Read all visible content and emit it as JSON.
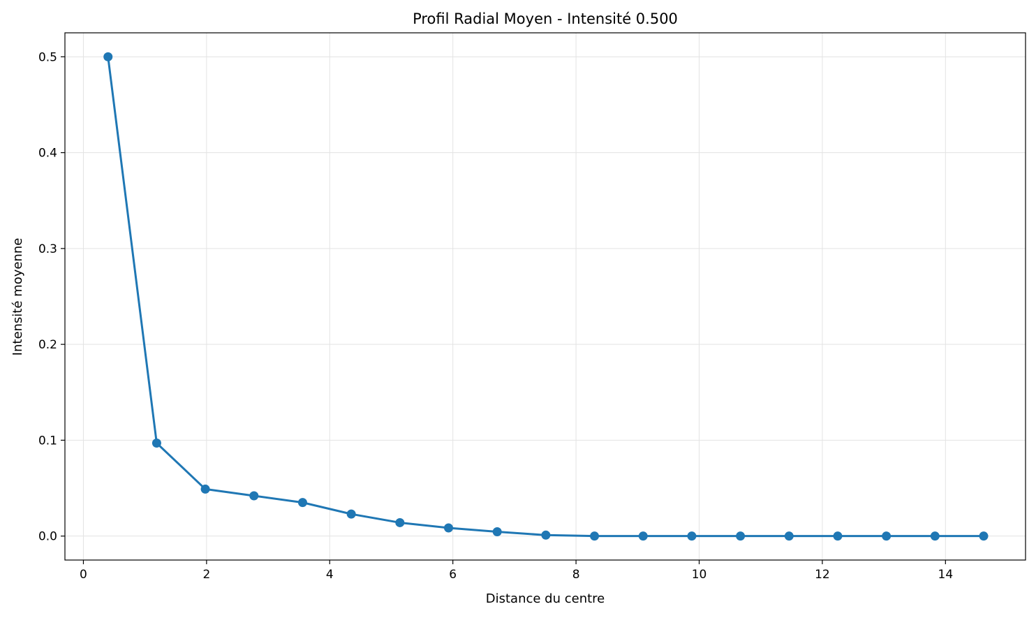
{
  "chart_data": {
    "type": "line",
    "title": "Profil Radial Moyen - Intensité 0.500",
    "xlabel": "Distance du centre",
    "ylabel": "Intensité moyenne",
    "xlim": [
      -0.3,
      15.3
    ],
    "ylim": [
      -0.025,
      0.525
    ],
    "xticks": [
      0,
      2,
      4,
      6,
      8,
      10,
      12,
      14
    ],
    "xtick_labels": [
      "0",
      "2",
      "4",
      "6",
      "8",
      "10",
      "12",
      "14"
    ],
    "yticks": [
      0.0,
      0.1,
      0.2,
      0.3,
      0.4,
      0.5
    ],
    "ytick_labels": [
      "0.0",
      "0.1",
      "0.2",
      "0.3",
      "0.4",
      "0.5"
    ],
    "grid": true,
    "series": [
      {
        "x": [
          0.4,
          1.19,
          1.98,
          2.77,
          3.56,
          4.35,
          5.14,
          5.93,
          6.72,
          7.51,
          8.3,
          9.09,
          9.88,
          10.67,
          11.46,
          12.25,
          13.04,
          13.83,
          14.62
        ],
        "y": [
          0.5,
          0.097,
          0.049,
          0.042,
          0.035,
          0.023,
          0.014,
          0.0085,
          0.0045,
          0.001,
          0.0,
          0.0,
          0.0,
          0.0,
          0.0,
          0.0,
          0.0,
          0.0,
          0.0
        ],
        "color": "#1f77b4",
        "marker": "circle"
      }
    ]
  }
}
